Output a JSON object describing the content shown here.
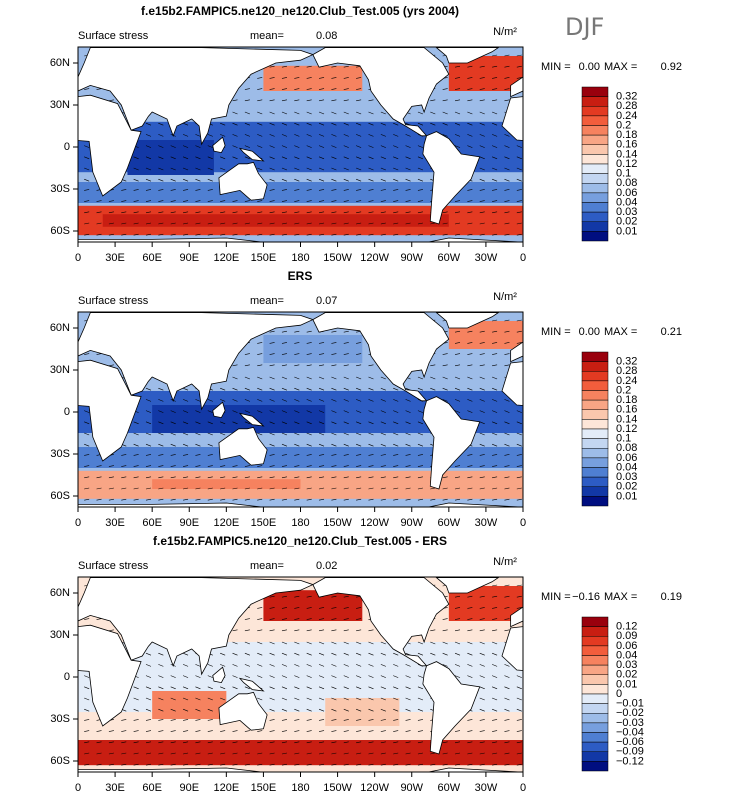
{
  "season": "DJF",
  "xticks": [
    "0",
    "30E",
    "60E",
    "90E",
    "120E",
    "150E",
    "180",
    "150W",
    "120W",
    "90W",
    "60W",
    "30W",
    "0"
  ],
  "yticks": [
    "60N",
    "30N",
    "0",
    "30S",
    "60S"
  ],
  "colorbar_colors": [
    "#99000d",
    "#c81e12",
    "#e33a22",
    "#f25d3c",
    "#f6825f",
    "#f8a585",
    "#fac7ad",
    "#fde6d8",
    "#e3ecf8",
    "#c3d6f1",
    "#9dbce8",
    "#779fde",
    "#4f7fd2",
    "#2d5cc4",
    "#1238a6",
    "#000e80"
  ],
  "panels": [
    {
      "title": "f.e15b2.FAMPIC5.ne120_ne120.Club_Test.005 (yrs 2004)",
      "left_label": "Surface stress",
      "mean_label": "mean=",
      "mean": "0.08",
      "units": "N/m²",
      "min_label": "MIN =",
      "min": "0.00",
      "max_label": "MAX =",
      "max": "0.92",
      "colorbar_labels": [
        "0.32",
        "0.28",
        "0.24",
        "0.2",
        "0.18",
        "0.16",
        "0.14",
        "0.12",
        "0.1",
        "0.08",
        "0.06",
        "0.04",
        "0.03",
        "0.02",
        "0.01"
      ]
    },
    {
      "title": "ERS",
      "left_label": "Surface stress",
      "mean_label": "mean=",
      "mean": "0.07",
      "units": "N/m²",
      "min_label": "MIN =",
      "min": "0.00",
      "max_label": "MAX =",
      "max": "0.21",
      "colorbar_labels": [
        "0.32",
        "0.28",
        "0.24",
        "0.2",
        "0.18",
        "0.16",
        "0.14",
        "0.12",
        "0.1",
        "0.08",
        "0.06",
        "0.04",
        "0.03",
        "0.02",
        "0.01"
      ]
    },
    {
      "title": "f.e15b2.FAMPIC5.ne120_ne120.Club_Test.005 - ERS",
      "left_label": "Surface stress",
      "mean_label": "mean=",
      "mean": "0.02",
      "units": "N/m²",
      "min_label": "MIN =",
      "min": "−0.16",
      "max_label": "MAX =",
      "max": "0.19",
      "colorbar_labels": [
        "0.12",
        "0.09",
        "0.06",
        "0.04",
        "0.03",
        "0.02",
        "0.01",
        "0",
        "−0.01",
        "−0.02",
        "−0.03",
        "−0.04",
        "−0.06",
        "−0.09",
        "−0.12"
      ]
    }
  ]
}
